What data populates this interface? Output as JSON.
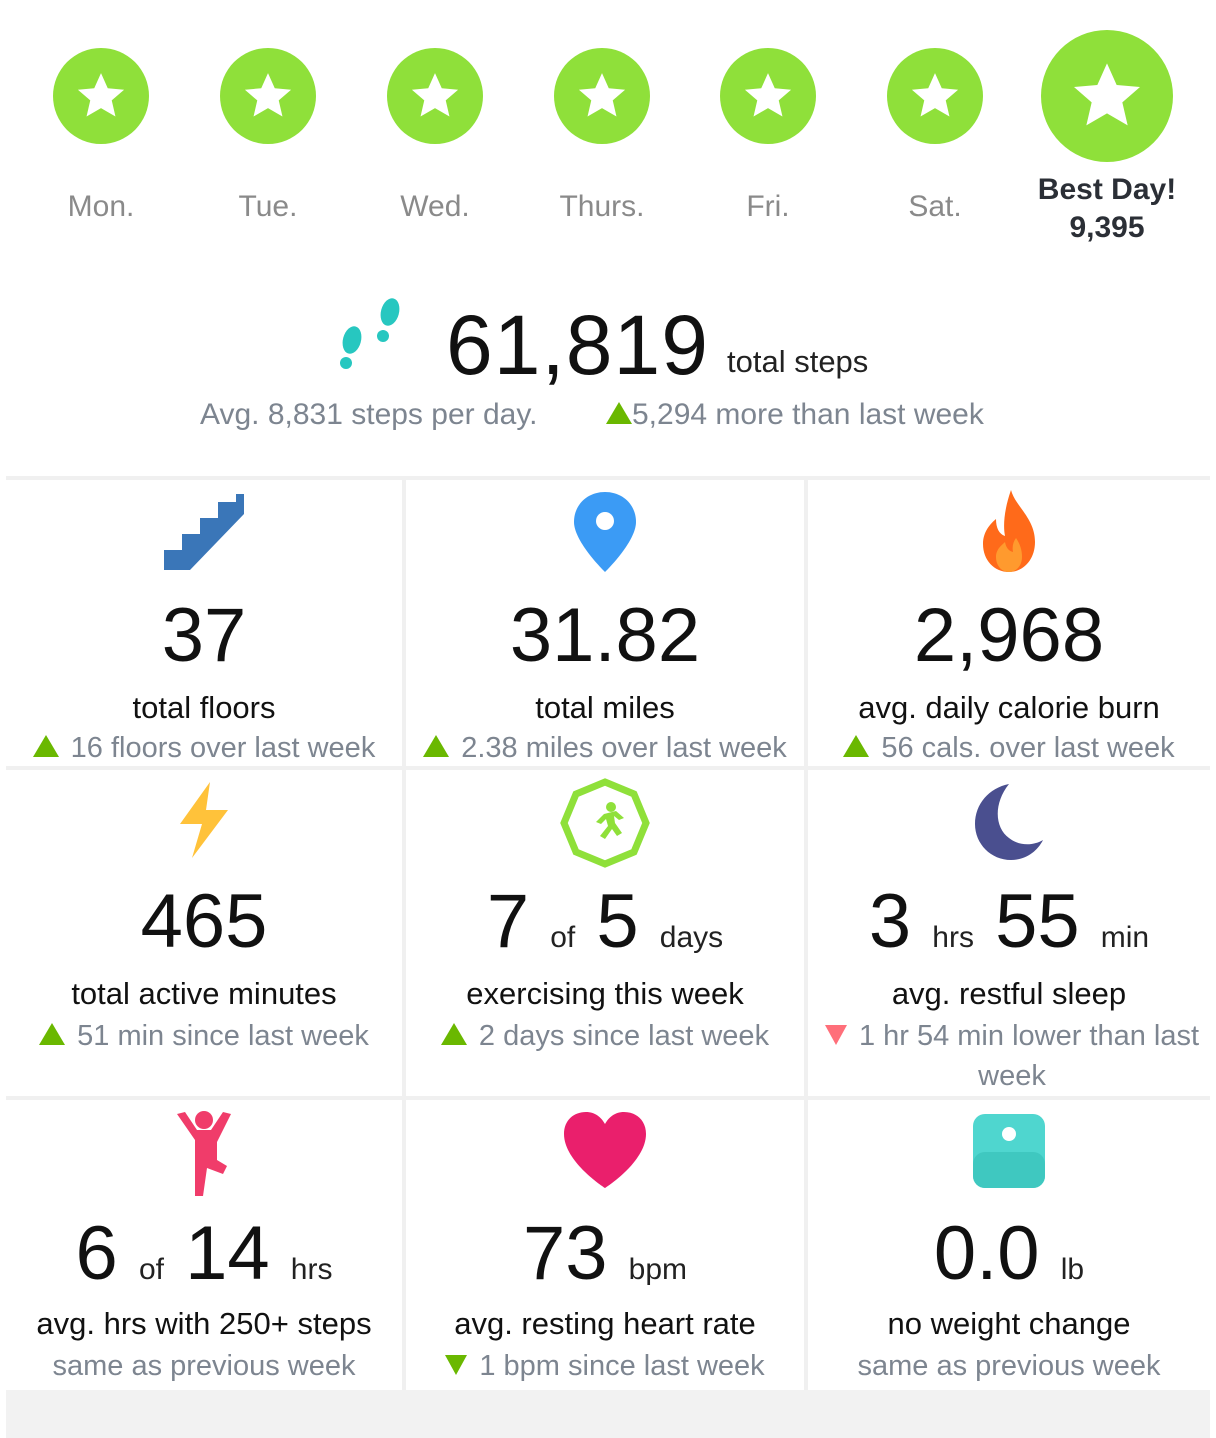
{
  "days": [
    {
      "label": "Mon."
    },
    {
      "label": "Tue."
    },
    {
      "label": "Wed."
    },
    {
      "label": "Thurs."
    },
    {
      "label": "Fri."
    },
    {
      "label": "Sat."
    }
  ],
  "best_day": {
    "label": "Best Day!",
    "value": "9,395"
  },
  "steps": {
    "total": "61,819",
    "unit": "total steps",
    "average": "Avg. 8,831 steps per day.",
    "change": "5,294 more than last week"
  },
  "stats": {
    "floors": {
      "value": "37",
      "title": "total floors",
      "note": "16 floors over last week",
      "trend": "up"
    },
    "miles": {
      "value": "31.82",
      "title": "total miles",
      "note": "2.38 miles over last week",
      "trend": "up"
    },
    "calories": {
      "value": "2,968",
      "title": "avg. daily calorie burn",
      "note": "56 cals. over last week",
      "trend": "up"
    },
    "active": {
      "value": "465",
      "title": "total active minutes",
      "note": "51 min since last week",
      "trend": "up"
    },
    "exercise": {
      "value": "7",
      "of": "of",
      "goal": "5",
      "unit": "days",
      "title": "exercising this week",
      "note": "2 days since last week",
      "trend": "up"
    },
    "sleep": {
      "hours": "3",
      "hours_unit": "hrs",
      "minutes": "55",
      "minutes_unit": "min",
      "title": "avg. restful sleep",
      "note": "1 hr 54 min lower than last week",
      "trend": "down"
    },
    "hourly": {
      "value": "6",
      "of": "of",
      "goal": "14",
      "unit": "hrs",
      "title": "avg. hrs with 250+ steps",
      "note": "same as previous week"
    },
    "heart": {
      "value": "73",
      "unit": "bpm",
      "title": "avg. resting heart rate",
      "note": "1 bpm since last week",
      "trend": "down"
    },
    "weight": {
      "value": "0.0",
      "unit": "lb",
      "title": "no weight change",
      "note": "same as previous week"
    }
  },
  "colors": {
    "badge_green": "#8fe03a",
    "trend_up": "#6ab800",
    "trend_down": "#ff6f7a",
    "stairs": "#3a76b8",
    "pin": "#3b9bf5",
    "flame": "#ff6a1a",
    "bolt": "#ffc23a",
    "moon": "#4a4f8f",
    "figure": "#f03c6a",
    "heart": "#ea1f6c",
    "scale": "#4fd6cf",
    "feet": "#27c7c0"
  },
  "icons": [
    "star-icon",
    "footprints-icon",
    "stairs-icon",
    "location-pin-icon",
    "flame-icon",
    "lightning-bolt-icon",
    "running-badge-icon",
    "moon-icon",
    "standing-figure-icon",
    "heart-icon",
    "scale-icon"
  ]
}
